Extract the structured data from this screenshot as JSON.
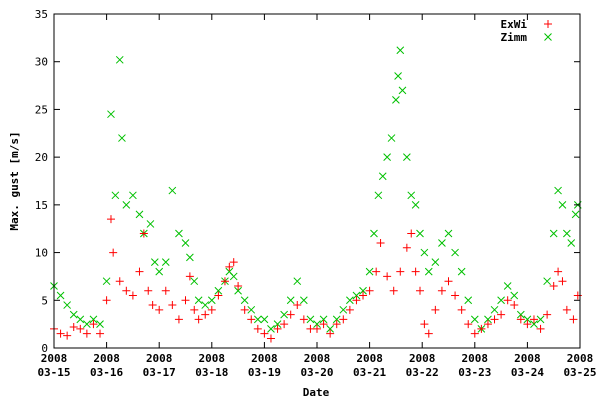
{
  "chart_data": {
    "type": "scatter",
    "title": "",
    "xlabel": "Date",
    "ylabel": "Max. gust [m/s]",
    "x_range": [
      "2008-03-15",
      "2008-03-25"
    ],
    "ylim": [
      0,
      35
    ],
    "y_ticks": [
      0,
      5,
      10,
      15,
      20,
      25,
      30,
      35
    ],
    "x_ticks": [
      {
        "date": "2008-03-15",
        "year": "2008",
        "md": "03-15"
      },
      {
        "date": "2008-03-16",
        "year": "2008",
        "md": "03-16"
      },
      {
        "date": "2008-03-17",
        "year": "2008",
        "md": "03-17"
      },
      {
        "date": "2008-03-18",
        "year": "2008",
        "md": "03-18"
      },
      {
        "date": "2008-03-19",
        "year": "2008",
        "md": "03-19"
      },
      {
        "date": "2008-03-20",
        "year": "2008",
        "md": "03-20"
      },
      {
        "date": "2008-03-21",
        "year": "2008",
        "md": "03-21"
      },
      {
        "date": "2008-03-22",
        "year": "2008",
        "md": "03-22"
      },
      {
        "date": "2008-03-23",
        "year": "2008",
        "md": "03-23"
      },
      {
        "date": "2008-03-24",
        "year": "2008",
        "md": "03-24"
      },
      {
        "date": "2008-03-25",
        "year": "2008",
        "md": "03-25"
      }
    ],
    "grid": false,
    "legend_position": "top-right",
    "series": [
      {
        "name": "ExWi",
        "marker": "plus",
        "color": "#ff0000",
        "points": [
          [
            "2008-03-15 00:00",
            2.0
          ],
          [
            "2008-03-15 03:00",
            1.5
          ],
          [
            "2008-03-15 06:00",
            1.3
          ],
          [
            "2008-03-15 09:00",
            2.2
          ],
          [
            "2008-03-15 12:00",
            2.0
          ],
          [
            "2008-03-15 15:00",
            1.5
          ],
          [
            "2008-03-15 18:00",
            2.5
          ],
          [
            "2008-03-15 21:00",
            1.5
          ],
          [
            "2008-03-16 00:00",
            5.0
          ],
          [
            "2008-03-16 02:00",
            13.5
          ],
          [
            "2008-03-16 03:00",
            10.0
          ],
          [
            "2008-03-16 06:00",
            7.0
          ],
          [
            "2008-03-16 09:00",
            6.0
          ],
          [
            "2008-03-16 12:00",
            5.5
          ],
          [
            "2008-03-16 15:00",
            8.0
          ],
          [
            "2008-03-16 17:00",
            12.0
          ],
          [
            "2008-03-16 19:00",
            6.0
          ],
          [
            "2008-03-16 21:00",
            4.5
          ],
          [
            "2008-03-17 00:00",
            4.0
          ],
          [
            "2008-03-17 03:00",
            6.0
          ],
          [
            "2008-03-17 06:00",
            4.5
          ],
          [
            "2008-03-17 09:00",
            3.0
          ],
          [
            "2008-03-17 12:00",
            5.0
          ],
          [
            "2008-03-17 14:00",
            7.5
          ],
          [
            "2008-03-17 16:00",
            4.0
          ],
          [
            "2008-03-17 18:00",
            3.0
          ],
          [
            "2008-03-17 21:00",
            3.5
          ],
          [
            "2008-03-18 00:00",
            4.0
          ],
          [
            "2008-03-18 03:00",
            5.5
          ],
          [
            "2008-03-18 06:00",
            7.0
          ],
          [
            "2008-03-18 08:00",
            8.5
          ],
          [
            "2008-03-18 10:00",
            9.0
          ],
          [
            "2008-03-18 12:00",
            6.5
          ],
          [
            "2008-03-18 15:00",
            4.0
          ],
          [
            "2008-03-18 18:00",
            3.0
          ],
          [
            "2008-03-18 21:00",
            2.0
          ],
          [
            "2008-03-19 00:00",
            1.5
          ],
          [
            "2008-03-19 03:00",
            1.0
          ],
          [
            "2008-03-19 06:00",
            2.0
          ],
          [
            "2008-03-19 09:00",
            2.5
          ],
          [
            "2008-03-19 12:00",
            3.5
          ],
          [
            "2008-03-19 15:00",
            4.5
          ],
          [
            "2008-03-19 18:00",
            3.0
          ],
          [
            "2008-03-19 21:00",
            2.0
          ],
          [
            "2008-03-20 00:00",
            2.0
          ],
          [
            "2008-03-20 03:00",
            2.5
          ],
          [
            "2008-03-20 06:00",
            1.5
          ],
          [
            "2008-03-20 09:00",
            2.5
          ],
          [
            "2008-03-20 12:00",
            3.0
          ],
          [
            "2008-03-20 15:00",
            4.0
          ],
          [
            "2008-03-20 18:00",
            5.0
          ],
          [
            "2008-03-20 21:00",
            5.5
          ],
          [
            "2008-03-21 00:00",
            6.0
          ],
          [
            "2008-03-21 03:00",
            8.0
          ],
          [
            "2008-03-21 05:00",
            11.0
          ],
          [
            "2008-03-21 08:00",
            7.5
          ],
          [
            "2008-03-21 11:00",
            6.0
          ],
          [
            "2008-03-21 14:00",
            8.0
          ],
          [
            "2008-03-21 17:00",
            10.5
          ],
          [
            "2008-03-21 19:00",
            12.0
          ],
          [
            "2008-03-21 21:00",
            8.0
          ],
          [
            "2008-03-21 23:00",
            6.0
          ],
          [
            "2008-03-22 01:00",
            2.5
          ],
          [
            "2008-03-22 03:00",
            1.5
          ],
          [
            "2008-03-22 06:00",
            4.0
          ],
          [
            "2008-03-22 09:00",
            6.0
          ],
          [
            "2008-03-22 12:00",
            7.0
          ],
          [
            "2008-03-22 15:00",
            5.5
          ],
          [
            "2008-03-22 18:00",
            4.0
          ],
          [
            "2008-03-22 21:00",
            2.5
          ],
          [
            "2008-03-23 00:00",
            1.5
          ],
          [
            "2008-03-23 03:00",
            2.0
          ],
          [
            "2008-03-23 06:00",
            2.5
          ],
          [
            "2008-03-23 09:00",
            3.0
          ],
          [
            "2008-03-23 12:00",
            3.5
          ],
          [
            "2008-03-23 15:00",
            5.0
          ],
          [
            "2008-03-23 18:00",
            4.5
          ],
          [
            "2008-03-23 21:00",
            3.0
          ],
          [
            "2008-03-24 00:00",
            2.5
          ],
          [
            "2008-03-24 03:00",
            3.0
          ],
          [
            "2008-03-24 06:00",
            2.0
          ],
          [
            "2008-03-24 09:00",
            3.5
          ],
          [
            "2008-03-24 12:00",
            6.5
          ],
          [
            "2008-03-24 14:00",
            8.0
          ],
          [
            "2008-03-24 16:00",
            7.0
          ],
          [
            "2008-03-24 18:00",
            4.0
          ],
          [
            "2008-03-24 21:00",
            3.0
          ],
          [
            "2008-03-24 23:00",
            5.5
          ]
        ]
      },
      {
        "name": "Zimm",
        "marker": "cross",
        "color": "#00c000",
        "points": [
          [
            "2008-03-15 00:00",
            6.5
          ],
          [
            "2008-03-15 03:00",
            5.5
          ],
          [
            "2008-03-15 06:00",
            4.5
          ],
          [
            "2008-03-15 09:00",
            3.5
          ],
          [
            "2008-03-15 12:00",
            3.0
          ],
          [
            "2008-03-15 15:00",
            2.5
          ],
          [
            "2008-03-15 18:00",
            3.0
          ],
          [
            "2008-03-15 21:00",
            2.5
          ],
          [
            "2008-03-16 00:00",
            7.0
          ],
          [
            "2008-03-16 02:00",
            24.5
          ],
          [
            "2008-03-16 04:00",
            16.0
          ],
          [
            "2008-03-16 06:00",
            30.2
          ],
          [
            "2008-03-16 07:00",
            22.0
          ],
          [
            "2008-03-16 09:00",
            15.0
          ],
          [
            "2008-03-16 12:00",
            16.0
          ],
          [
            "2008-03-16 15:00",
            14.0
          ],
          [
            "2008-03-16 17:00",
            12.0
          ],
          [
            "2008-03-16 20:00",
            13.0
          ],
          [
            "2008-03-16 22:00",
            9.0
          ],
          [
            "2008-03-17 00:00",
            8.0
          ],
          [
            "2008-03-17 03:00",
            9.0
          ],
          [
            "2008-03-17 06:00",
            16.5
          ],
          [
            "2008-03-17 09:00",
            12.0
          ],
          [
            "2008-03-17 12:00",
            11.0
          ],
          [
            "2008-03-17 14:00",
            9.5
          ],
          [
            "2008-03-17 16:00",
            7.0
          ],
          [
            "2008-03-17 18:00",
            5.0
          ],
          [
            "2008-03-17 21:00",
            4.5
          ],
          [
            "2008-03-18 00:00",
            5.0
          ],
          [
            "2008-03-18 03:00",
            6.0
          ],
          [
            "2008-03-18 06:00",
            7.0
          ],
          [
            "2008-03-18 08:00",
            8.0
          ],
          [
            "2008-03-18 10:00",
            7.5
          ],
          [
            "2008-03-18 12:00",
            6.0
          ],
          [
            "2008-03-18 15:00",
            5.0
          ],
          [
            "2008-03-18 18:00",
            4.0
          ],
          [
            "2008-03-18 21:00",
            3.0
          ],
          [
            "2008-03-19 00:00",
            3.0
          ],
          [
            "2008-03-19 03:00",
            2.0
          ],
          [
            "2008-03-19 06:00",
            2.5
          ],
          [
            "2008-03-19 09:00",
            3.5
          ],
          [
            "2008-03-19 12:00",
            5.0
          ],
          [
            "2008-03-19 15:00",
            7.0
          ],
          [
            "2008-03-19 18:00",
            5.0
          ],
          [
            "2008-03-19 21:00",
            3.0
          ],
          [
            "2008-03-20 00:00",
            2.5
          ],
          [
            "2008-03-20 03:00",
            3.0
          ],
          [
            "2008-03-20 06:00",
            2.0
          ],
          [
            "2008-03-20 09:00",
            3.0
          ],
          [
            "2008-03-20 12:00",
            4.0
          ],
          [
            "2008-03-20 15:00",
            5.0
          ],
          [
            "2008-03-20 18:00",
            5.5
          ],
          [
            "2008-03-20 21:00",
            6.0
          ],
          [
            "2008-03-21 00:00",
            8.0
          ],
          [
            "2008-03-21 02:00",
            12.0
          ],
          [
            "2008-03-21 04:00",
            16.0
          ],
          [
            "2008-03-21 06:00",
            18.0
          ],
          [
            "2008-03-21 08:00",
            20.0
          ],
          [
            "2008-03-21 10:00",
            22.0
          ],
          [
            "2008-03-21 12:00",
            26.0
          ],
          [
            "2008-03-21 13:00",
            28.5
          ],
          [
            "2008-03-21 14:00",
            31.2
          ],
          [
            "2008-03-21 15:00",
            27.0
          ],
          [
            "2008-03-21 17:00",
            20.0
          ],
          [
            "2008-03-21 19:00",
            16.0
          ],
          [
            "2008-03-21 21:00",
            15.0
          ],
          [
            "2008-03-21 23:00",
            12.0
          ],
          [
            "2008-03-22 01:00",
            10.0
          ],
          [
            "2008-03-22 03:00",
            8.0
          ],
          [
            "2008-03-22 06:00",
            9.0
          ],
          [
            "2008-03-22 09:00",
            11.0
          ],
          [
            "2008-03-22 12:00",
            12.0
          ],
          [
            "2008-03-22 15:00",
            10.0
          ],
          [
            "2008-03-22 18:00",
            8.0
          ],
          [
            "2008-03-22 21:00",
            5.0
          ],
          [
            "2008-03-23 00:00",
            3.0
          ],
          [
            "2008-03-23 03:00",
            2.0
          ],
          [
            "2008-03-23 06:00",
            3.0
          ],
          [
            "2008-03-23 09:00",
            4.0
          ],
          [
            "2008-03-23 12:00",
            5.0
          ],
          [
            "2008-03-23 15:00",
            6.5
          ],
          [
            "2008-03-23 18:00",
            5.5
          ],
          [
            "2008-03-23 21:00",
            3.5
          ],
          [
            "2008-03-24 00:00",
            3.0
          ],
          [
            "2008-03-24 03:00",
            2.5
          ],
          [
            "2008-03-24 06:00",
            3.0
          ],
          [
            "2008-03-24 09:00",
            7.0
          ],
          [
            "2008-03-24 12:00",
            12.0
          ],
          [
            "2008-03-24 14:00",
            16.5
          ],
          [
            "2008-03-24 16:00",
            15.0
          ],
          [
            "2008-03-24 18:00",
            12.0
          ],
          [
            "2008-03-24 20:00",
            11.0
          ],
          [
            "2008-03-24 22:00",
            14.0
          ],
          [
            "2008-03-24 23:00",
            15.0
          ]
        ]
      }
    ]
  }
}
